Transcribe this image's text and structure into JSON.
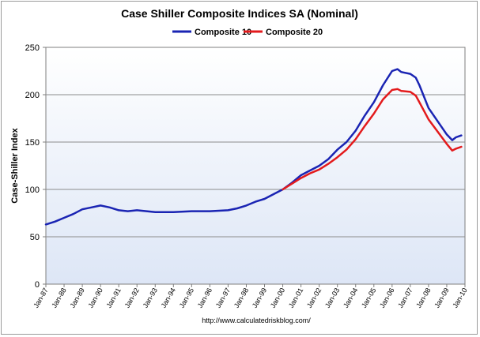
{
  "chart_data": {
    "type": "line",
    "title": "Case Shiller Composite Indices SA (Nominal)",
    "xlabel": "",
    "ylabel": "Case-Shiller Index",
    "ylim": [
      0,
      250
    ],
    "yticks": [
      0,
      50,
      100,
      150,
      200,
      250
    ],
    "xlim": [
      1987.0,
      2010.0
    ],
    "legend_position": "top-center",
    "grid": "horizontal",
    "plot_background": "gradient-white-to-pale-blue",
    "source": "http://www.calculatedriskblog.com/",
    "x_tick_labels": [
      "Jan-87",
      "Jan-88",
      "Jan-89",
      "Jan-90",
      "Jan-91",
      "Jan-92",
      "Jan-93",
      "Jan-94",
      "Jan-95",
      "Jan-96",
      "Jan-97",
      "Jan-98",
      "Jan-99",
      "Jan-00",
      "Jan-01",
      "Jan-02",
      "Jan-03",
      "Jan-04",
      "Jan-05",
      "Jan-06",
      "Jan-07",
      "Jan-08",
      "Jan-09",
      "Jan-10"
    ],
    "series": [
      {
        "name": "Composite 10",
        "color": "#1a24b3",
        "x": [
          1987.0,
          1987.5,
          1988.0,
          1988.5,
          1989.0,
          1989.5,
          1990.0,
          1990.5,
          1991.0,
          1991.5,
          1992.0,
          1993.0,
          1994.0,
          1995.0,
          1996.0,
          1997.0,
          1997.5,
          1998.0,
          1998.5,
          1999.0,
          1999.5,
          2000.0,
          2000.5,
          2001.0,
          2001.5,
          2002.0,
          2002.5,
          2003.0,
          2003.5,
          2004.0,
          2004.5,
          2005.0,
          2005.5,
          2006.0,
          2006.3,
          2006.5,
          2007.0,
          2007.3,
          2007.5,
          2008.0,
          2008.5,
          2009.0,
          2009.3,
          2009.5,
          2009.8
        ],
        "y": [
          63,
          66,
          70,
          74,
          79,
          81,
          83,
          81,
          78,
          77,
          78,
          76,
          76,
          77,
          77,
          78,
          80,
          83,
          87,
          90,
          95,
          100,
          107,
          115,
          120,
          125,
          132,
          142,
          150,
          162,
          178,
          192,
          210,
          225,
          227,
          224,
          222,
          218,
          210,
          186,
          172,
          158,
          152,
          155,
          157
        ]
      },
      {
        "name": "Composite 20",
        "color": "#e31a1c",
        "x": [
          2000.0,
          2000.5,
          2001.0,
          2001.5,
          2002.0,
          2002.5,
          2003.0,
          2003.5,
          2004.0,
          2004.5,
          2005.0,
          2005.5,
          2006.0,
          2006.3,
          2006.5,
          2007.0,
          2007.3,
          2007.5,
          2008.0,
          2008.5,
          2009.0,
          2009.3,
          2009.5,
          2009.8
        ],
        "y": [
          100,
          106,
          112,
          117,
          121,
          127,
          134,
          142,
          153,
          167,
          180,
          195,
          205,
          206,
          204,
          203,
          199,
          192,
          174,
          161,
          148,
          141,
          143,
          145
        ]
      }
    ]
  }
}
